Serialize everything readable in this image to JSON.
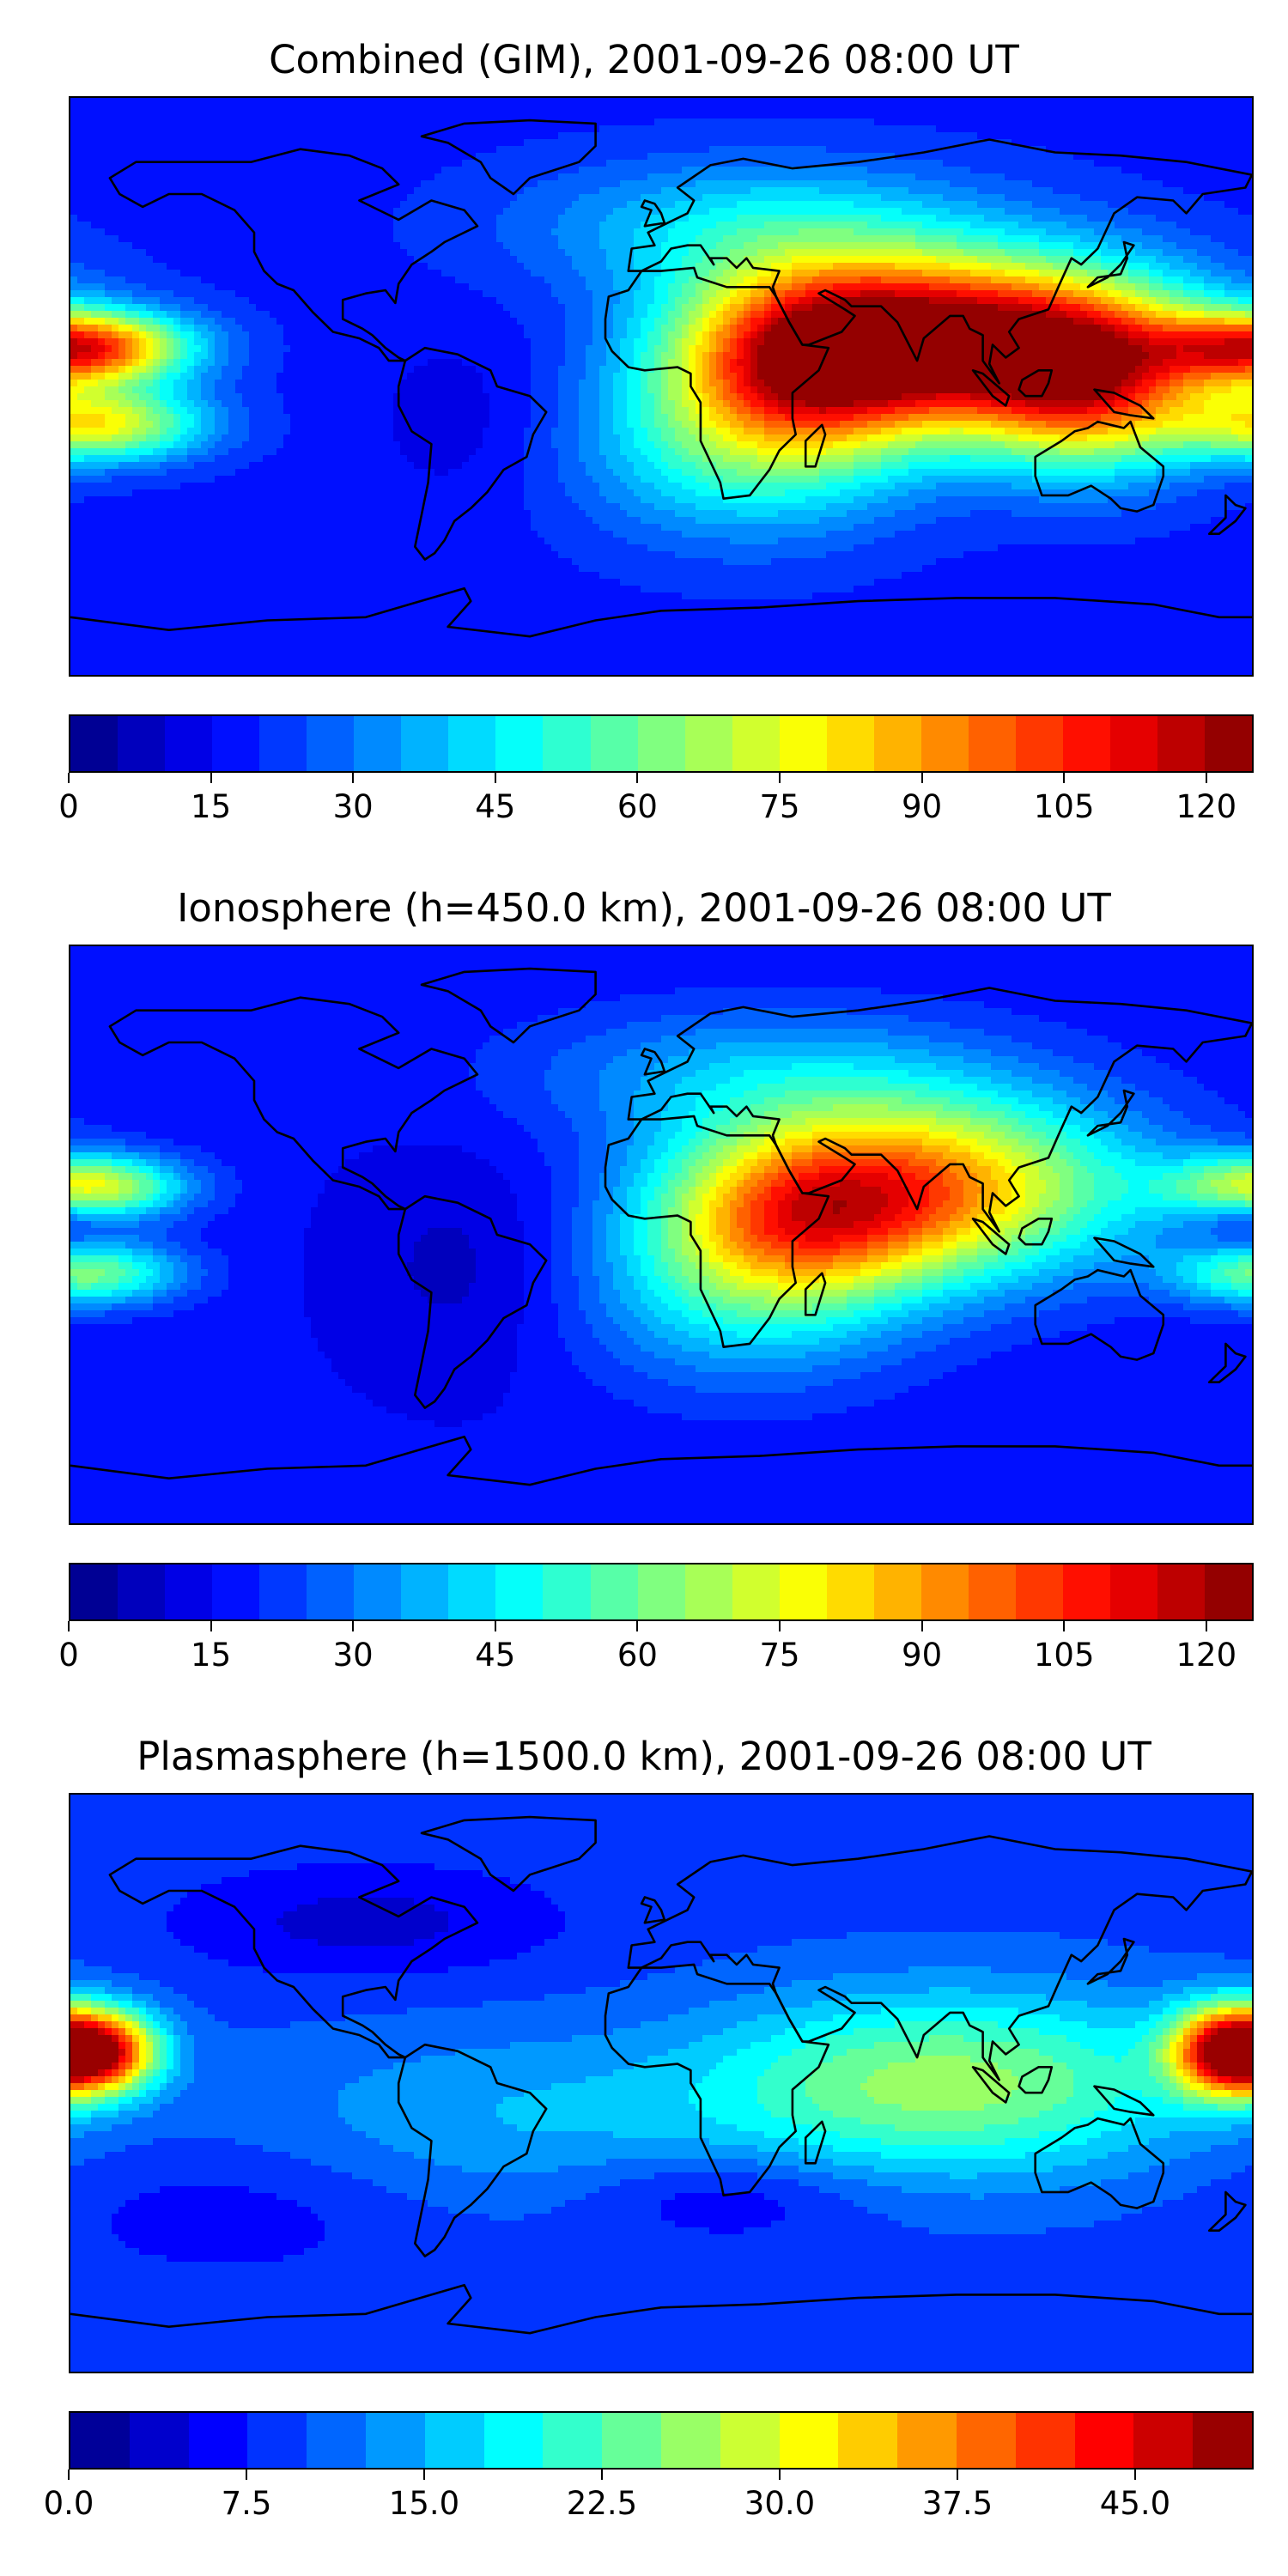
{
  "panels": [
    {
      "title": "Combined (GIM), 2001-09-26 08:00 UT",
      "colorbar": {
        "vmin": 0,
        "vmax": 125,
        "levels": 25,
        "ticks": [
          0,
          15,
          30,
          45,
          60,
          75,
          90,
          105,
          120
        ],
        "tick_labels": [
          "0",
          "15",
          "30",
          "45",
          "60",
          "75",
          "90",
          "105",
          "120"
        ]
      },
      "field": {
        "background": 18,
        "features": [
          {
            "lon": 95,
            "lat": 15,
            "amp": 95,
            "slon": 45,
            "slat": 18
          },
          {
            "lon": 45,
            "lat": 8,
            "amp": 70,
            "slon": 30,
            "slat": 20
          },
          {
            "lon": 130,
            "lat": -2,
            "amp": 60,
            "slon": 25,
            "slat": 18
          },
          {
            "lon": -175,
            "lat": 12,
            "amp": 80,
            "slon": 22,
            "slat": 8
          },
          {
            "lon": -170,
            "lat": -12,
            "amp": 55,
            "slon": 22,
            "slat": 8
          },
          {
            "lon": 25,
            "lat": -20,
            "amp": 30,
            "slon": 35,
            "slat": 20
          },
          {
            "lon": 30,
            "lat": 50,
            "amp": 25,
            "slon": 50,
            "slat": 15
          },
          {
            "lon": -60,
            "lat": -10,
            "amp": -6,
            "slon": 20,
            "slat": 20
          }
        ]
      }
    },
    {
      "title": "Ionosphere  (h=450.0 km), 2001-09-26 08:00 UT",
      "colorbar": {
        "vmin": 0,
        "vmax": 125,
        "levels": 25,
        "ticks": [
          0,
          15,
          30,
          45,
          60,
          75,
          90,
          105,
          120
        ],
        "tick_labels": [
          "0",
          "15",
          "30",
          "45",
          "60",
          "75",
          "90",
          "105",
          "120"
        ]
      },
      "field": {
        "background": 16,
        "features": [
          {
            "lon": 80,
            "lat": 15,
            "amp": 72,
            "slon": 45,
            "slat": 20
          },
          {
            "lon": 40,
            "lat": 5,
            "amp": 45,
            "slon": 30,
            "slat": 18
          },
          {
            "lon": -175,
            "lat": 15,
            "amp": 60,
            "slon": 20,
            "slat": 7
          },
          {
            "lon": -175,
            "lat": -12,
            "amp": 45,
            "slon": 20,
            "slat": 7
          },
          {
            "lon": 178,
            "lat": 5,
            "amp": -12,
            "slon": 10,
            "slat": 8
          },
          {
            "lon": 25,
            "lat": -20,
            "amp": 25,
            "slon": 35,
            "slat": 20
          },
          {
            "lon": 30,
            "lat": 50,
            "amp": 20,
            "slon": 50,
            "slat": 15
          },
          {
            "lon": -60,
            "lat": -10,
            "amp": -8,
            "slon": 25,
            "slat": 25
          }
        ]
      }
    },
    {
      "title": "Plasmasphere (h=1500.0 km), 2001-09-26 08:00 UT",
      "colorbar": {
        "vmin": 0,
        "vmax": 50,
        "levels": 20,
        "ticks": [
          0,
          7.5,
          15,
          22.5,
          30,
          37.5,
          45
        ],
        "tick_labels": [
          "0.0",
          "7.5",
          "15.0",
          "22.5",
          "30.0",
          "37.5",
          "45.0"
        ]
      },
      "field": {
        "background": 9,
        "features": [
          {
            "lon": -170,
            "lat": 10,
            "amp": 33,
            "slon": 12,
            "slat": 9
          },
          {
            "lon": 172,
            "lat": 10,
            "amp": 35,
            "slon": 12,
            "slat": 10
          },
          {
            "lon": 110,
            "lat": 0,
            "amp": 12,
            "slon": 45,
            "slat": 20
          },
          {
            "lon": 60,
            "lat": 0,
            "amp": 8,
            "slon": 40,
            "slat": 20
          },
          {
            "lon": -40,
            "lat": -10,
            "amp": 6,
            "slon": 60,
            "slat": 20
          },
          {
            "lon": -90,
            "lat": 50,
            "amp": -5,
            "slon": 40,
            "slat": 12
          },
          {
            "lon": 20,
            "lat": -35,
            "amp": -5,
            "slon": 30,
            "slat": 10
          },
          {
            "lon": -130,
            "lat": -40,
            "amp": -3,
            "slon": 40,
            "slat": 15
          }
        ]
      }
    }
  ],
  "colormap": "jet",
  "map": {
    "projection": "plate-carree",
    "lon_range": [
      -180,
      180
    ],
    "lat_range": [
      -90,
      90
    ],
    "coastlines": true
  }
}
